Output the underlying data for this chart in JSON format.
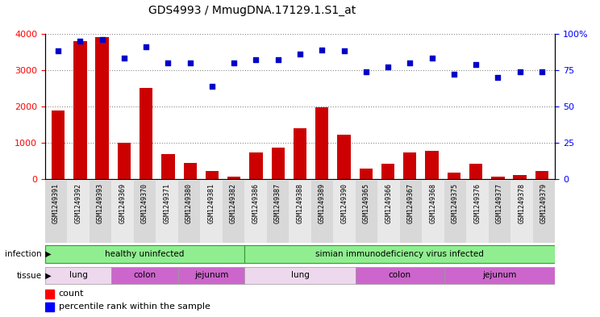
{
  "title": "GDS4993 / MmugDNA.17129.1.S1_at",
  "samples": [
    "GSM1249391",
    "GSM1249392",
    "GSM1249393",
    "GSM1249369",
    "GSM1249370",
    "GSM1249371",
    "GSM1249380",
    "GSM1249381",
    "GSM1249382",
    "GSM1249386",
    "GSM1249387",
    "GSM1249388",
    "GSM1249389",
    "GSM1249390",
    "GSM1249365",
    "GSM1249366",
    "GSM1249367",
    "GSM1249368",
    "GSM1249375",
    "GSM1249376",
    "GSM1249377",
    "GSM1249378",
    "GSM1249379"
  ],
  "counts": [
    1900,
    3800,
    3900,
    1000,
    2500,
    700,
    450,
    230,
    80,
    750,
    880,
    1400,
    1980,
    1220,
    290,
    420,
    750,
    780,
    180,
    430,
    80,
    130,
    230
  ],
  "percentiles": [
    88,
    95,
    96,
    83,
    91,
    80,
    80,
    64,
    80,
    82,
    82,
    86,
    89,
    88,
    74,
    77,
    80,
    83,
    72,
    79,
    70,
    74,
    74
  ],
  "bar_color": "#CC0000",
  "dot_color": "#0000CC",
  "ylim_left": [
    0,
    4000
  ],
  "ylim_right": [
    0,
    100
  ],
  "yticks_left": [
    0,
    1000,
    2000,
    3000,
    4000
  ],
  "yticks_right": [
    0,
    25,
    50,
    75,
    100
  ],
  "infection_groups": [
    {
      "label": "healthy uninfected",
      "start": 0,
      "end": 9,
      "color": "#90EE90"
    },
    {
      "label": "simian immunodeficiency virus infected",
      "start": 9,
      "end": 23,
      "color": "#90EE90"
    }
  ],
  "tissue_groups": [
    {
      "label": "lung",
      "start": 0,
      "end": 3,
      "color": "#EDD8ED"
    },
    {
      "label": "colon",
      "start": 3,
      "end": 6,
      "color": "#CC66CC"
    },
    {
      "label": "jejunum",
      "start": 6,
      "end": 9,
      "color": "#CC66CC"
    },
    {
      "label": "lung",
      "start": 9,
      "end": 14,
      "color": "#EDD8ED"
    },
    {
      "label": "colon",
      "start": 14,
      "end": 18,
      "color": "#CC66CC"
    },
    {
      "label": "jejunum",
      "start": 18,
      "end": 23,
      "color": "#CC66CC"
    }
  ]
}
